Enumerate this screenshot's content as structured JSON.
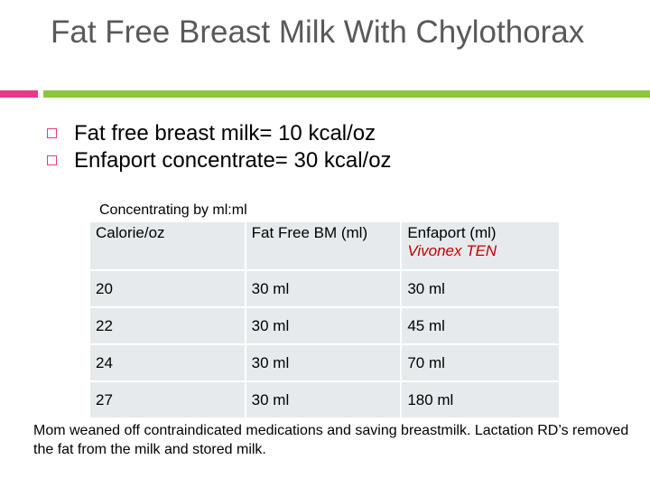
{
  "slide": {
    "title": "Fat Free Breast Milk With Chylothorax",
    "bullets": [
      "Fat free breast milk= 10 kcal/oz",
      "Enfaport concentrate= 30 kcal/oz"
    ],
    "table_caption": "Concentrating by ml:ml",
    "table": {
      "headers": [
        "Calorie/oz",
        "Fat Free BM (ml)",
        "Enfaport (ml)"
      ],
      "header_note": "Vivonex TEN",
      "rows": [
        [
          "20",
          "30 ml",
          "30 ml"
        ],
        [
          "22",
          "30 ml",
          "45 ml"
        ],
        [
          "24",
          "30 ml",
          "70 ml"
        ],
        [
          "27",
          "30 ml",
          "180 ml"
        ]
      ]
    },
    "footnote": "Mom weaned off contraindicated medications and saving breastmilk. Lactation RD’s removed the fat from the milk and stored milk."
  },
  "colors": {
    "accent_pink": "#e6398a",
    "accent_green": "#8dc63f",
    "title_gray": "#595959",
    "note_red": "#c00000",
    "cell_bg": "#e7eaec"
  },
  "icons": {
    "bullet": "hollow-square-bullet-icon"
  }
}
